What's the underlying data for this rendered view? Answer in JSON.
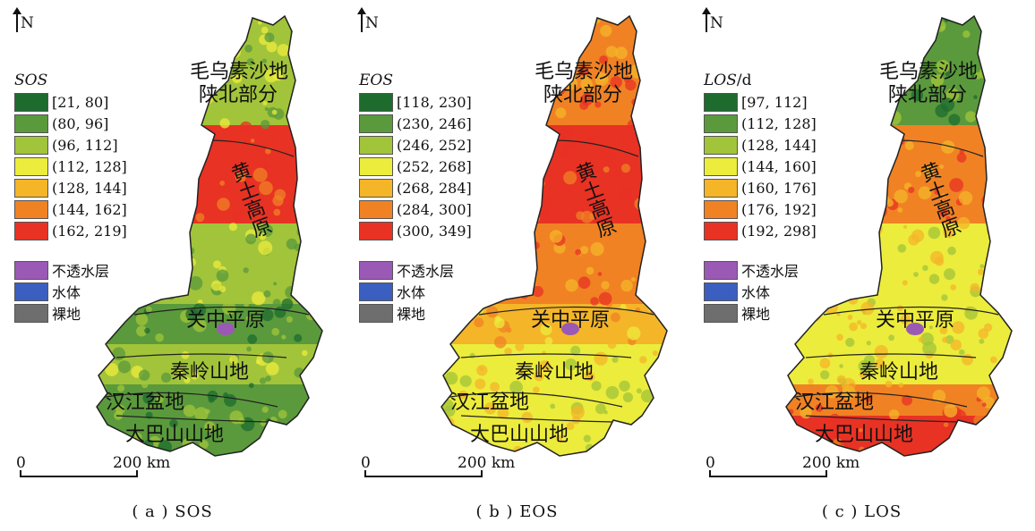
{
  "north_label": "N",
  "scale": {
    "zero": "0",
    "distance": "200 km"
  },
  "regions": {
    "maowusu": "毛乌素沙地",
    "shanbei": "陕北部分",
    "loess": "黄土高原",
    "guanzhong": "关中平原",
    "qinling": "秦岭山地",
    "hanjiang": "汉江盆地",
    "daba": "大巴山山地"
  },
  "extra_classes": [
    {
      "label": "不透水层",
      "color": "#9b59b6"
    },
    {
      "label": "水体",
      "color": "#3b5fc0"
    },
    {
      "label": "裸地",
      "color": "#6e6e6e"
    }
  ],
  "ramp_colors": [
    "#1e6b2e",
    "#5a9a3c",
    "#a2c43a",
    "#ecec3c",
    "#f4b528",
    "#f08224",
    "#e83224"
  ],
  "panels": [
    {
      "id": "sos",
      "legend_title": "SOS",
      "legend_unit": "",
      "caption": "( a )  SOS",
      "classes": [
        "[21, 80]",
        "(80, 96]",
        "(96, 112]",
        "(112, 128]",
        "(128, 144]",
        "(144, 162]",
        "(162, 219]"
      ]
    },
    {
      "id": "eos",
      "legend_title": "EOS",
      "legend_unit": "",
      "caption": "( b )  EOS",
      "classes": [
        "[118, 230]",
        "(230, 246]",
        "(246, 252]",
        "(252, 268]",
        "(268, 284]",
        "(284, 300]",
        "(300, 349]"
      ]
    },
    {
      "id": "los",
      "legend_title": "LOS",
      "legend_unit": "/d",
      "caption": "( c )  LOS",
      "classes": [
        "[97, 112]",
        "(112, 128]",
        "(128, 144]",
        "(144, 160]",
        "(160, 176]",
        "(176, 192]",
        "(192, 298]"
      ]
    }
  ]
}
